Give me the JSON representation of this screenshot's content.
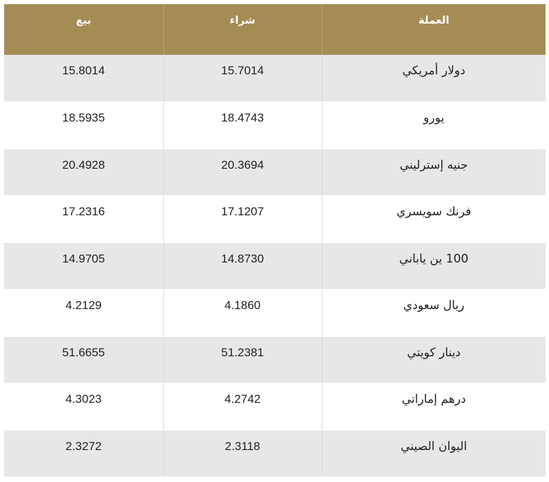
{
  "table": {
    "headers": {
      "currency": "العملة",
      "buy": "شراء",
      "sell": "بيع"
    },
    "rows": [
      {
        "currency": "دولار أمريكي",
        "buy": "15.7014",
        "sell": "15.8014"
      },
      {
        "currency": "يورو",
        "buy": "18.4743",
        "sell": "18.5935"
      },
      {
        "currency": "جنيه إسترليني",
        "buy": "20.3694",
        "sell": "20.4928"
      },
      {
        "currency": "فرنك سويسري",
        "buy": "17.1207",
        "sell": "17.2316"
      },
      {
        "currency": "100 ين ياباني",
        "buy": "14.8730",
        "sell": "14.9705"
      },
      {
        "currency": "ريال سعودي",
        "buy": "4.1860",
        "sell": "4.2129"
      },
      {
        "currency": "دينار كويتي",
        "buy": "51.2381",
        "sell": "51.6655"
      },
      {
        "currency": "درهم إماراتي",
        "buy": "4.2742",
        "sell": "4.3023"
      },
      {
        "currency": "اليوان الصيني",
        "buy": "2.3118",
        "sell": "2.3272"
      }
    ]
  },
  "colors": {
    "header_bg": "#a58c55",
    "header_text": "#ffffff",
    "row_odd_bg": "#e6e7e8",
    "row_even_bg": "#ffffff"
  }
}
